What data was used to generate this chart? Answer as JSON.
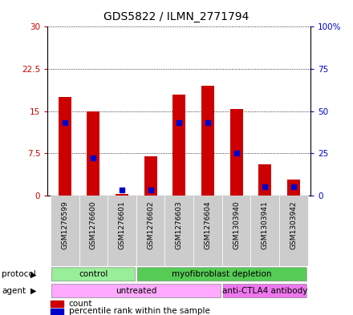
{
  "title": "GDS5822 / ILMN_2771794",
  "samples": [
    "GSM1276599",
    "GSM1276600",
    "GSM1276601",
    "GSM1276602",
    "GSM1276603",
    "GSM1276604",
    "GSM1303940",
    "GSM1303941",
    "GSM1303942"
  ],
  "count_values": [
    17.5,
    15.0,
    0.2,
    7.0,
    18.0,
    19.5,
    15.3,
    5.5,
    2.8
  ],
  "percentile_values": [
    43,
    22,
    3,
    3,
    43,
    43,
    25,
    5,
    5
  ],
  "ylim_left": [
    0,
    30
  ],
  "ylim_right": [
    0,
    100
  ],
  "yticks_left": [
    0,
    7.5,
    15,
    22.5,
    30
  ],
  "yticks_right": [
    0,
    25,
    50,
    75,
    100
  ],
  "yticklabels_left": [
    "0",
    "7.5",
    "15",
    "22.5",
    "30"
  ],
  "yticklabels_right": [
    "0",
    "25",
    "50",
    "75",
    "100%"
  ],
  "bar_color": "#cc0000",
  "dot_color": "#0000cc",
  "bar_width": 0.45,
  "protocol_groups": [
    {
      "label": "control",
      "span": [
        0,
        3
      ],
      "color": "#99ee99"
    },
    {
      "label": "myofibroblast depletion",
      "span": [
        3,
        9
      ],
      "color": "#55cc55"
    }
  ],
  "agent_groups": [
    {
      "label": "untreated",
      "span": [
        0,
        6
      ],
      "color": "#ffaaff"
    },
    {
      "label": "anti-CTLA4 antibody",
      "span": [
        6,
        9
      ],
      "color": "#ee77ee"
    }
  ],
  "protocol_label": "protocol",
  "agent_label": "agent",
  "legend_count_label": "count",
  "legend_percentile_label": "percentile rank within the sample",
  "title_fontsize": 10,
  "axis_label_color_left": "#cc0000",
  "axis_label_color_right": "#0000cc",
  "grid_color": "#000000",
  "xtick_bg_color": "#cccccc",
  "plot_bg_color": "#ffffff"
}
